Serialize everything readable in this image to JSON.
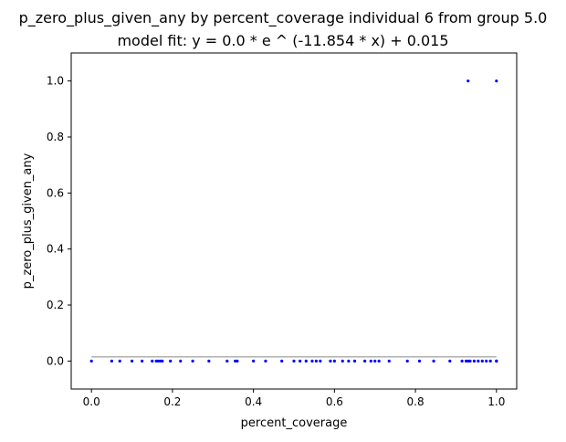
{
  "chart_data": {
    "type": "scatter",
    "title": "p_zero_plus_given_any by percent_coverage individual 6 from group 5.0",
    "subtitle": "model fit: y = 0.0 * e ^ (-11.854 * x) + 0.015",
    "xlabel": "percent_coverage",
    "ylabel": "p_zero_plus_given_any",
    "xlim": [
      -0.05,
      1.05
    ],
    "ylim": [
      -0.1,
      1.1
    ],
    "x_ticks": [
      0.0,
      0.2,
      0.4,
      0.6,
      0.8,
      1.0
    ],
    "x_tick_labels": [
      "0.0",
      "0.2",
      "0.4",
      "0.6",
      "0.8",
      "1.0"
    ],
    "y_ticks": [
      0.0,
      0.2,
      0.4,
      0.6,
      0.8,
      1.0
    ],
    "y_tick_labels": [
      "0.0",
      "0.2",
      "0.4",
      "0.6",
      "0.8",
      "1.0"
    ],
    "grid": false,
    "legend": "none",
    "colors": {
      "points": "#0000ff",
      "fit_line": "#b0b0b0",
      "axes": "#000000"
    },
    "series": [
      {
        "type": "scatter",
        "x": [
          0.0,
          0.05,
          0.07,
          0.1,
          0.125,
          0.15,
          0.16,
          0.165,
          0.17,
          0.175,
          0.195,
          0.22,
          0.25,
          0.29,
          0.335,
          0.355,
          0.36,
          0.4,
          0.43,
          0.47,
          0.5,
          0.515,
          0.53,
          0.545,
          0.555,
          0.565,
          0.59,
          0.6,
          0.62,
          0.635,
          0.65,
          0.675,
          0.69,
          0.7,
          0.71,
          0.735,
          0.78,
          0.81,
          0.845,
          0.885,
          0.915,
          0.925,
          0.93,
          0.935,
          0.945,
          0.955,
          0.965,
          0.975,
          0.985,
          1.0,
          1.0,
          0.93,
          1.0
        ],
        "y": [
          0,
          0,
          0,
          0,
          0,
          0,
          0,
          0,
          0,
          0,
          0,
          0,
          0,
          0,
          0,
          0,
          0,
          0,
          0,
          0,
          0,
          0,
          0,
          0,
          0,
          0,
          0,
          0,
          0,
          0,
          0,
          0,
          0,
          0,
          0,
          0,
          0,
          0,
          0,
          0,
          0,
          0,
          0,
          0,
          0,
          0,
          0,
          0,
          0,
          0,
          0,
          1,
          1
        ]
      },
      {
        "type": "line",
        "x": [
          0.0,
          1.0
        ],
        "y": [
          0.015,
          0.015
        ]
      }
    ]
  }
}
